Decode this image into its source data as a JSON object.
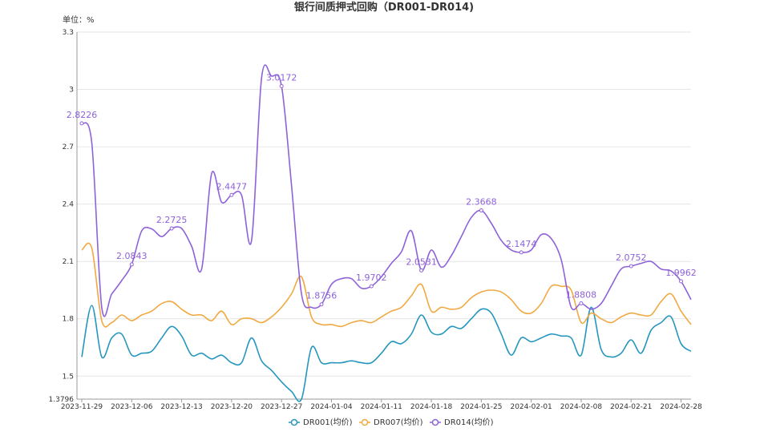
{
  "chart_data": {
    "type": "line",
    "title": "银行间质押式回购（DR001-DR014)",
    "unit_label": "单位：%",
    "ylim": [
      1.3796,
      3.3
    ],
    "yticks": [
      "1.3796",
      "1.5",
      "1.8",
      "2.1",
      "2.4",
      "2.7",
      "3",
      "3.3"
    ],
    "x_tick_labels": [
      "2023-11-29",
      "2023-12-06",
      "2023-12-13",
      "2023-12-20",
      "2023-12-27",
      "2024-01-04",
      "2024-01-11",
      "2024-01-18",
      "2024-01-25",
      "2024-02-01",
      "2024-02-08",
      "2024-02-21",
      "2024-02-28"
    ],
    "x_tick_index": [
      0,
      5,
      10,
      15,
      20,
      25,
      30,
      35,
      40,
      45,
      50,
      55,
      60
    ],
    "grid": "horizontal",
    "legend_position": "bottom",
    "series": [
      {
        "name": "DR001(均价)",
        "color": "#2596be",
        "values": [
          1.6,
          1.87,
          1.6,
          1.7,
          1.72,
          1.61,
          1.62,
          1.63,
          1.7,
          1.76,
          1.71,
          1.61,
          1.62,
          1.59,
          1.61,
          1.57,
          1.57,
          1.7,
          1.58,
          1.53,
          1.47,
          1.42,
          1.38,
          1.65,
          1.57,
          1.57,
          1.57,
          1.58,
          1.57,
          1.57,
          1.62,
          1.68,
          1.67,
          1.72,
          1.82,
          1.73,
          1.72,
          1.76,
          1.75,
          1.8,
          1.85,
          1.83,
          1.72,
          1.61,
          1.7,
          1.68,
          1.7,
          1.72,
          1.71,
          1.7,
          1.61,
          1.86,
          1.64,
          1.6,
          1.62,
          1.69,
          1.62,
          1.74,
          1.78,
          1.81,
          1.67,
          1.63
        ]
      },
      {
        "name": "DR007(均价)",
        "color": "#f0a940",
        "values": [
          2.16,
          2.17,
          1.79,
          1.78,
          1.82,
          1.79,
          1.82,
          1.84,
          1.88,
          1.89,
          1.85,
          1.82,
          1.82,
          1.79,
          1.84,
          1.77,
          1.8,
          1.8,
          1.78,
          1.81,
          1.86,
          1.93,
          2.02,
          1.81,
          1.77,
          1.77,
          1.76,
          1.78,
          1.79,
          1.78,
          1.81,
          1.84,
          1.86,
          1.92,
          1.98,
          1.84,
          1.86,
          1.85,
          1.86,
          1.91,
          1.94,
          1.95,
          1.94,
          1.9,
          1.84,
          1.83,
          1.88,
          1.97,
          1.97,
          1.95,
          1.78,
          1.83,
          1.8,
          1.78,
          1.81,
          1.83,
          1.82,
          1.82,
          1.89,
          1.93,
          1.84,
          1.77
        ]
      },
      {
        "name": "DR014(均价)",
        "color": "#8e62d9",
        "values": [
          2.8226,
          2.72,
          1.86,
          1.93,
          2.0,
          2.0843,
          2.26,
          2.27,
          2.23,
          2.2725,
          2.2725,
          2.18,
          2.06,
          2.56,
          2.41,
          2.4477,
          2.4477,
          2.21,
          3.06,
          3.07,
          3.0172,
          2.5,
          1.93,
          1.86,
          1.8756,
          1.98,
          2.01,
          2.01,
          1.96,
          1.9702,
          2.02,
          2.09,
          2.15,
          2.26,
          2.0531,
          2.16,
          2.07,
          2.13,
          2.23,
          2.33,
          2.3668,
          2.3,
          2.21,
          2.16,
          2.1474,
          2.16,
          2.24,
          2.22,
          2.11,
          1.86,
          1.8808,
          1.85,
          1.88,
          1.97,
          2.06,
          2.0752,
          2.09,
          2.1,
          2.06,
          2.05,
          1.9962,
          1.9
        ]
      }
    ],
    "data_labels": [
      {
        "series": 2,
        "index": 0,
        "text": "2.8226"
      },
      {
        "series": 2,
        "index": 5,
        "text": "2.0843"
      },
      {
        "series": 2,
        "index": 9,
        "text": "2.2725"
      },
      {
        "series": 2,
        "index": 15,
        "text": "2.4477"
      },
      {
        "series": 2,
        "index": 20,
        "text": "3.0172"
      },
      {
        "series": 2,
        "index": 24,
        "text": "1.8756"
      },
      {
        "series": 2,
        "index": 29,
        "text": "1.9702"
      },
      {
        "series": 2,
        "index": 34,
        "text": "2.0531"
      },
      {
        "series": 2,
        "index": 40,
        "text": "2.3668"
      },
      {
        "series": 2,
        "index": 44,
        "text": "2.1474"
      },
      {
        "series": 2,
        "index": 50,
        "text": "1.8808"
      },
      {
        "series": 2,
        "index": 55,
        "text": "2.0752"
      },
      {
        "series": 2,
        "index": 60,
        "text": "1.9962"
      }
    ]
  }
}
